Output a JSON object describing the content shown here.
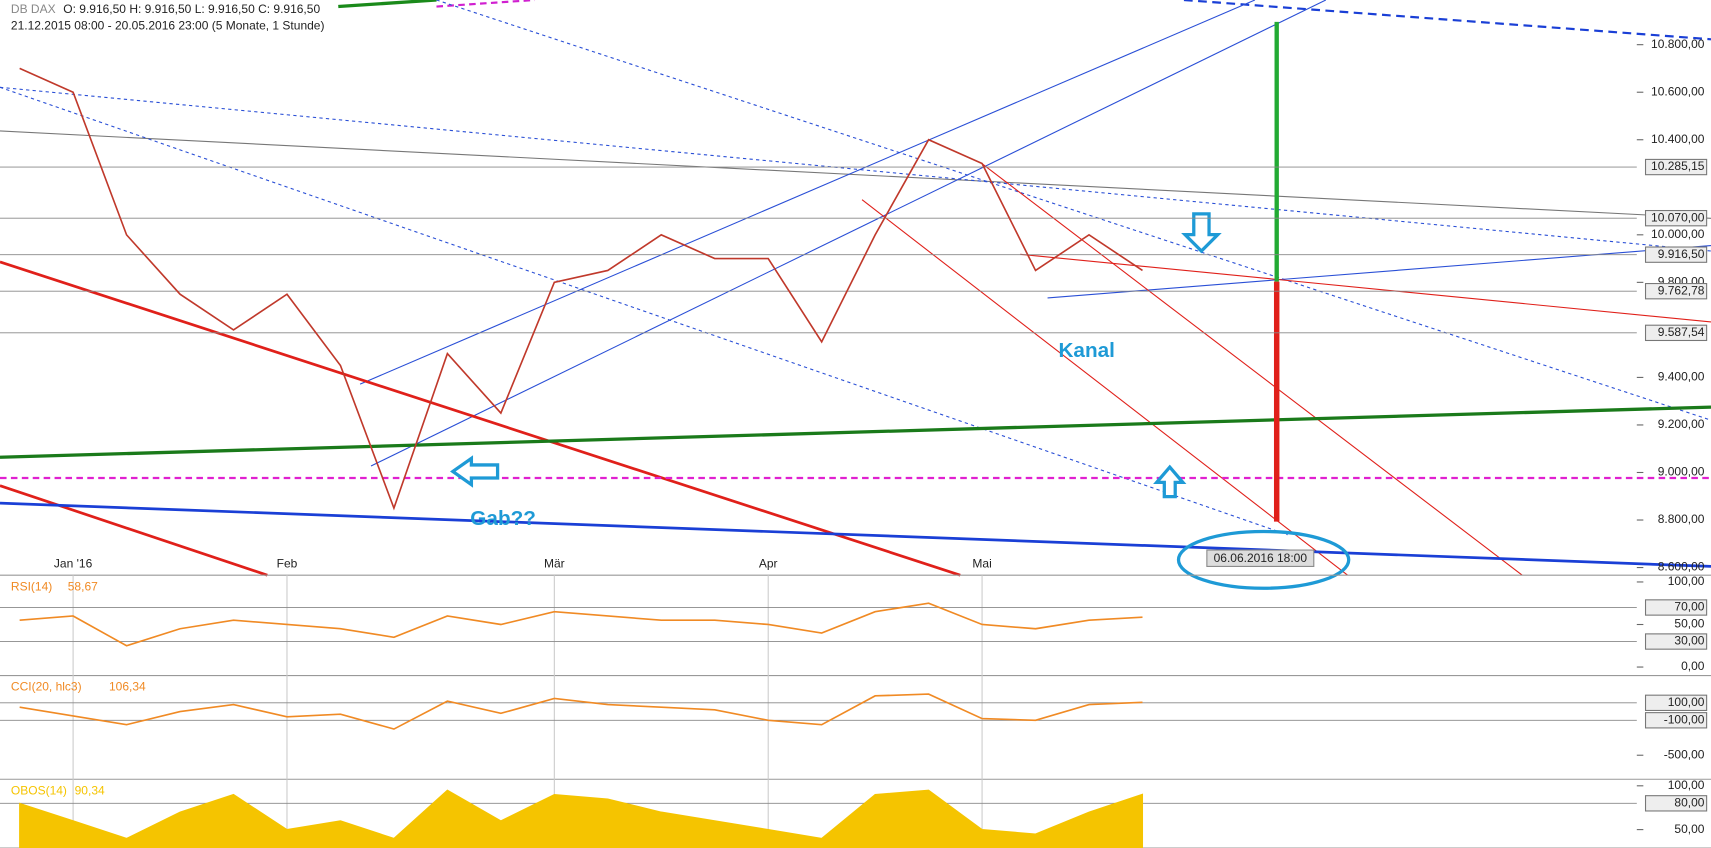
{
  "header": {
    "symbol": "DB DAX",
    "ohlc": "O: 9.916,50  H: 9.916,50  L: 9.916,50  C: 9.916,50",
    "range": "21.12.2015 08:00 - 20.05.2016 23:00 (5 Monate, 1 Stunde)"
  },
  "chart_data": [
    {
      "type": "line",
      "color": "#c0392b",
      "categories": [
        null,
        "Jan '16",
        null,
        null,
        null,
        "Feb",
        null,
        null,
        null,
        null,
        "Mär",
        null,
        null,
        null,
        "Apr",
        null,
        null,
        null,
        "Mai",
        null,
        null,
        null
      ],
      "values": [
        10700,
        10600,
        10000,
        9750,
        9600,
        9750,
        9450,
        8850,
        9500,
        9250,
        9800,
        9850,
        10000,
        9900,
        9900,
        9550,
        10000,
        10400,
        10300,
        9850,
        10000,
        9850
      ],
      "ylim": [
        8568,
        10988
      ],
      "yticks": [
        {
          "value": 10800,
          "label": "10.800,00"
        },
        {
          "value": 10600,
          "label": "10.600,00"
        },
        {
          "value": 10400,
          "label": "10.400,00"
        },
        {
          "value": 10000,
          "label": "10.000,00"
        },
        {
          "value": 9800,
          "label": "9.800,00"
        },
        {
          "value": 9400,
          "label": "9.400,00"
        },
        {
          "value": 9200,
          "label": "9.200,00"
        },
        {
          "value": 9000,
          "label": "9.000,00"
        },
        {
          "value": 8800,
          "label": "8.800,00"
        },
        {
          "value": 8600,
          "label": "8.600,00"
        }
      ],
      "bands": [
        {
          "value": 10285.15,
          "label": "10.285,15"
        },
        {
          "value": 10070,
          "label": "10.070,00"
        },
        {
          "value": 9916.5,
          "label": "9.916,50"
        },
        {
          "value": 9762.78,
          "label": "9.762,78"
        },
        {
          "value": 9587.54,
          "label": "9.587,54"
        }
      ],
      "annotations": [
        "Kanal",
        "Gab??",
        "06.06.2016 18:00"
      ]
    },
    {
      "type": "line",
      "title": "RSI(14)",
      "last_label": "58,67",
      "color": "#f08a24",
      "values": [
        55,
        60,
        25,
        45,
        55,
        50,
        45,
        35,
        60,
        50,
        65,
        60,
        55,
        55,
        50,
        40,
        65,
        75,
        50,
        45,
        55,
        58.67
      ],
      "ylim": [
        -10,
        108
      ],
      "yticks": [
        {
          "value": 100,
          "label": "100,00"
        },
        {
          "value": 50,
          "label": "50,00"
        },
        {
          "value": 0,
          "label": "0,00"
        }
      ],
      "bands": [
        {
          "value": 70,
          "label": "70,00"
        },
        {
          "value": 30,
          "label": "30,00"
        }
      ]
    },
    {
      "type": "line",
      "title": "CCI(20, hlc3)",
      "last_label": "106,34",
      "color": "#f08a24",
      "values": [
        50,
        -50,
        -150,
        0,
        80,
        -60,
        -30,
        -200,
        120,
        -20,
        150,
        80,
        50,
        20,
        -100,
        -150,
        180,
        200,
        -80,
        -100,
        80,
        106.34
      ],
      "ylim": [
        -775,
        412
      ],
      "yticks": [
        {
          "value": -500,
          "label": "-500,00"
        }
      ],
      "bands": [
        {
          "value": 100,
          "label": "100,00"
        },
        {
          "value": -100,
          "label": "-100,00"
        }
      ]
    },
    {
      "type": "area",
      "title": "OBOS(14)",
      "last_label": "90,34",
      "color": "#f5c400",
      "values": [
        80,
        60,
        40,
        70,
        90,
        50,
        60,
        40,
        95,
        60,
        90,
        85,
        70,
        60,
        50,
        40,
        90,
        95,
        50,
        45,
        70,
        90.34
      ],
      "ylim": [
        29,
        107.5
      ],
      "yticks": [
        {
          "value": 100,
          "label": "100,00"
        },
        {
          "value": 50,
          "label": "50,00"
        }
      ],
      "bands": [
        {
          "value": 80,
          "label": "80,00"
        }
      ]
    }
  ]
}
